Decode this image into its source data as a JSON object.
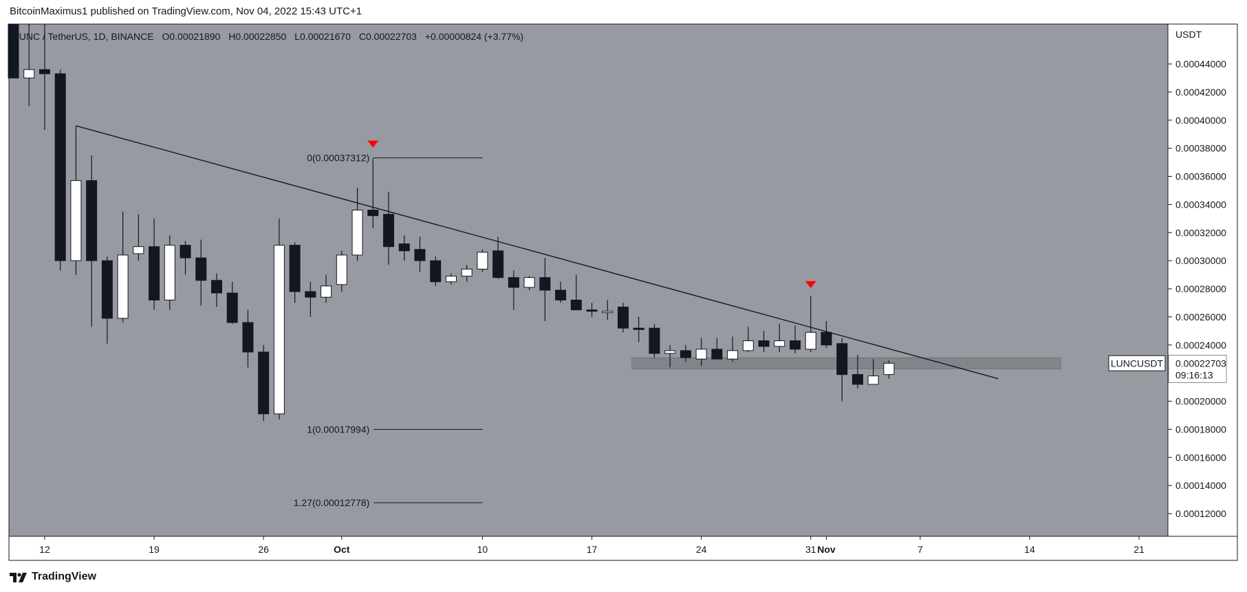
{
  "header": {
    "published_by": "BitcoinMaximus1 published on TradingView.com, Nov 04, 2022 15:43 UTC+1"
  },
  "footer": {
    "brand": "TradingView"
  },
  "legend": {
    "symbol": "LUNC / TetherUS, 1D, BINANCE",
    "o_label": "O",
    "o_value": "0.00021890",
    "h_label": "H",
    "h_value": "0.00022850",
    "l_label": "L",
    "l_value": "0.00021670",
    "c_label": "C",
    "c_value": "0.00022703",
    "change": "+0.00000824 (+3.77%)"
  },
  "price_axis": {
    "unit": "USDT",
    "ticks": [
      "0.00044000",
      "0.00042000",
      "0.00040000",
      "0.00038000",
      "0.00036000",
      "0.00034000",
      "0.00032000",
      "0.00030000",
      "0.00028000",
      "0.00026000",
      "0.00024000",
      "0.00022000",
      "0.00020000",
      "0.00018000",
      "0.00016000",
      "0.00014000",
      "0.00012000"
    ]
  },
  "last_price": {
    "symbol_label": "LUNCUSDT",
    "price": "0.00022703",
    "countdown": "09:16:13"
  },
  "date_axis": {
    "labels": [
      "12",
      "19",
      "26",
      "Oct",
      "10",
      "17",
      "24",
      "31",
      "Nov",
      "7",
      "14",
      "21"
    ],
    "bold": [
      "Oct",
      "Nov"
    ]
  },
  "chart_data": {
    "type": "candlestick",
    "symbol": "LUNC / TetherUS, 1D, BINANCE",
    "ylim": [
      0.0001,
      0.00047
    ],
    "x_first_day": "2022-09-10",
    "candles": [
      {
        "d": "2022-09-10",
        "o": 0.00047,
        "h": 0.00047,
        "l": 0.00043,
        "c": 0.00043
      },
      {
        "d": "2022-09-11",
        "o": 0.00043,
        "h": 0.00047,
        "l": 0.00041,
        "c": 0.000436
      },
      {
        "d": "2022-09-12",
        "o": 0.000436,
        "h": 0.00047,
        "l": 0.000393,
        "c": 0.000433
      },
      {
        "d": "2022-09-13",
        "o": 0.000433,
        "h": 0.000436,
        "l": 0.000293,
        "c": 0.0003
      },
      {
        "d": "2022-09-14",
        "o": 0.0003,
        "h": 0.000396,
        "l": 0.00029,
        "c": 0.000357
      },
      {
        "d": "2022-09-15",
        "o": 0.000357,
        "h": 0.000375,
        "l": 0.000253,
        "c": 0.0003
      },
      {
        "d": "2022-09-16",
        "o": 0.0003,
        "h": 0.000303,
        "l": 0.000241,
        "c": 0.000259
      },
      {
        "d": "2022-09-17",
        "o": 0.000259,
        "h": 0.000335,
        "l": 0.000256,
        "c": 0.000304
      },
      {
        "d": "2022-09-18",
        "o": 0.000305,
        "h": 0.000333,
        "l": 0.0003,
        "c": 0.00031
      },
      {
        "d": "2022-09-19",
        "o": 0.00031,
        "h": 0.00033,
        "l": 0.000265,
        "c": 0.000272
      },
      {
        "d": "2022-09-20",
        "o": 0.000272,
        "h": 0.000318,
        "l": 0.000265,
        "c": 0.000311
      },
      {
        "d": "2022-09-21",
        "o": 0.000311,
        "h": 0.000314,
        "l": 0.00029,
        "c": 0.000302
      },
      {
        "d": "2022-09-22",
        "o": 0.000302,
        "h": 0.000315,
        "l": 0.000268,
        "c": 0.000286
      },
      {
        "d": "2022-09-23",
        "o": 0.000286,
        "h": 0.000291,
        "l": 0.000267,
        "c": 0.000277
      },
      {
        "d": "2022-09-24",
        "o": 0.000277,
        "h": 0.000285,
        "l": 0.000255,
        "c": 0.000256
      },
      {
        "d": "2022-09-25",
        "o": 0.000256,
        "h": 0.000265,
        "l": 0.000224,
        "c": 0.000235
      },
      {
        "d": "2022-09-26",
        "o": 0.000235,
        "h": 0.00024,
        "l": 0.000186,
        "c": 0.000191
      },
      {
        "d": "2022-09-27",
        "o": 0.000191,
        "h": 0.00033,
        "l": 0.000187,
        "c": 0.000311
      },
      {
        "d": "2022-09-28",
        "o": 0.000311,
        "h": 0.000313,
        "l": 0.00027,
        "c": 0.000278
      },
      {
        "d": "2022-09-29",
        "o": 0.000278,
        "h": 0.000285,
        "l": 0.00026,
        "c": 0.000274
      },
      {
        "d": "2022-09-30",
        "o": 0.000274,
        "h": 0.00029,
        "l": 0.00027,
        "c": 0.000282
      },
      {
        "d": "2022-10-01",
        "o": 0.000283,
        "h": 0.000307,
        "l": 0.000278,
        "c": 0.000304
      },
      {
        "d": "2022-10-02",
        "o": 0.000304,
        "h": 0.000352,
        "l": 0.0003,
        "c": 0.000336
      },
      {
        "d": "2022-10-03",
        "o": 0.000336,
        "h": 0.000373,
        "l": 0.000323,
        "c": 0.000332
      },
      {
        "d": "2022-10-04",
        "o": 0.000333,
        "h": 0.000349,
        "l": 0.000297,
        "c": 0.00031
      },
      {
        "d": "2022-10-05",
        "o": 0.000312,
        "h": 0.000318,
        "l": 0.0003,
        "c": 0.000307
      },
      {
        "d": "2022-10-06",
        "o": 0.000308,
        "h": 0.000317,
        "l": 0.000292,
        "c": 0.0003
      },
      {
        "d": "2022-10-07",
        "o": 0.0003,
        "h": 0.000303,
        "l": 0.000282,
        "c": 0.000285
      },
      {
        "d": "2022-10-08",
        "o": 0.000285,
        "h": 0.000291,
        "l": 0.000283,
        "c": 0.000289
      },
      {
        "d": "2022-10-09",
        "o": 0.000289,
        "h": 0.000297,
        "l": 0.000285,
        "c": 0.000294
      },
      {
        "d": "2022-10-10",
        "o": 0.000294,
        "h": 0.000308,
        "l": 0.000292,
        "c": 0.000306
      },
      {
        "d": "2022-10-11",
        "o": 0.000307,
        "h": 0.000317,
        "l": 0.000287,
        "c": 0.000288
      },
      {
        "d": "2022-10-12",
        "o": 0.000288,
        "h": 0.000293,
        "l": 0.000265,
        "c": 0.000281
      },
      {
        "d": "2022-10-13",
        "o": 0.000281,
        "h": 0.000289,
        "l": 0.000279,
        "c": 0.000288
      },
      {
        "d": "2022-10-14",
        "o": 0.000288,
        "h": 0.000302,
        "l": 0.000257,
        "c": 0.000279
      },
      {
        "d": "2022-10-15",
        "o": 0.000279,
        "h": 0.000285,
        "l": 0.00027,
        "c": 0.000272
      },
      {
        "d": "2022-10-16",
        "o": 0.000272,
        "h": 0.00029,
        "l": 0.000265,
        "c": 0.000265
      },
      {
        "d": "2022-10-17",
        "o": 0.000265,
        "h": 0.00027,
        "l": 0.00026,
        "c": 0.000264
      },
      {
        "d": "2022-10-18",
        "o": 0.000264,
        "h": 0.000272,
        "l": 0.000258,
        "c": 0.000264
      },
      {
        "d": "2022-10-19",
        "o": 0.000267,
        "h": 0.00027,
        "l": 0.000249,
        "c": 0.000252
      },
      {
        "d": "2022-10-20",
        "o": 0.000252,
        "h": 0.00026,
        "l": 0.000242,
        "c": 0.000251
      },
      {
        "d": "2022-10-21",
        "o": 0.000252,
        "h": 0.000255,
        "l": 0.000231,
        "c": 0.000234
      },
      {
        "d": "2022-10-22",
        "o": 0.000234,
        "h": 0.00024,
        "l": 0.000224,
        "c": 0.000236
      },
      {
        "d": "2022-10-23",
        "o": 0.000236,
        "h": 0.00024,
        "l": 0.000228,
        "c": 0.000231
      },
      {
        "d": "2022-10-24",
        "o": 0.00023,
        "h": 0.000245,
        "l": 0.000225,
        "c": 0.000237
      },
      {
        "d": "2022-10-25",
        "o": 0.000237,
        "h": 0.000245,
        "l": 0.00023,
        "c": 0.00023
      },
      {
        "d": "2022-10-26",
        "o": 0.00023,
        "h": 0.000246,
        "l": 0.000228,
        "c": 0.000236
      },
      {
        "d": "2022-10-27",
        "o": 0.000236,
        "h": 0.000253,
        "l": 0.000235,
        "c": 0.000243
      },
      {
        "d": "2022-10-28",
        "o": 0.000243,
        "h": 0.00025,
        "l": 0.000235,
        "c": 0.000239
      },
      {
        "d": "2022-10-29",
        "o": 0.000239,
        "h": 0.000255,
        "l": 0.000235,
        "c": 0.000243
      },
      {
        "d": "2022-10-30",
        "o": 0.000243,
        "h": 0.000254,
        "l": 0.000234,
        "c": 0.000237
      },
      {
        "d": "2022-10-31",
        "o": 0.000237,
        "h": 0.000275,
        "l": 0.000235,
        "c": 0.000249
      },
      {
        "d": "2022-11-01",
        "o": 0.000249,
        "h": 0.000257,
        "l": 0.000238,
        "c": 0.00024
      },
      {
        "d": "2022-11-02",
        "o": 0.000241,
        "h": 0.000245,
        "l": 0.0002,
        "c": 0.000219
      },
      {
        "d": "2022-11-03",
        "o": 0.000219,
        "h": 0.000233,
        "l": 0.000209,
        "c": 0.000212
      },
      {
        "d": "2022-11-04",
        "o": 0.000212,
        "h": 0.00023,
        "l": 0.000212,
        "c": 0.000218
      },
      {
        "d": "2022-11-05",
        "o": 0.000219,
        "h": 0.000229,
        "l": 0.000216,
        "c": 0.000227
      }
    ],
    "descending_trendline": {
      "start": {
        "d": "2022-09-14",
        "price": 0.000396
      },
      "end": {
        "d": "2022-11-12",
        "price": 0.000216
      }
    },
    "support_zone": {
      "from": "2022-10-20",
      "to": "2022-11-16",
      "low": 0.000223,
      "high": 0.000231
    },
    "fib_levels": [
      {
        "label": "0(0.00037312)",
        "price": 0.00037312
      },
      {
        "label": "1(0.00017994)",
        "price": 0.00017994
      },
      {
        "label": "1.27(0.00012778)",
        "price": 0.00012778
      }
    ],
    "fib_range": {
      "from": "2022-10-03",
      "to": "2022-10-09"
    },
    "markers": [
      {
        "type": "down-arrow",
        "d": "2022-10-03",
        "price": 0.000383,
        "color": "#ff0000"
      },
      {
        "type": "down-arrow",
        "d": "2022-10-31",
        "price": 0.000283,
        "color": "#ff0000"
      }
    ],
    "colors": {
      "background": "#979aa1",
      "up": "#ffffff",
      "down": "#131722",
      "wick": "#131722",
      "trendline": "#131722",
      "zone": "#6f7277"
    }
  }
}
